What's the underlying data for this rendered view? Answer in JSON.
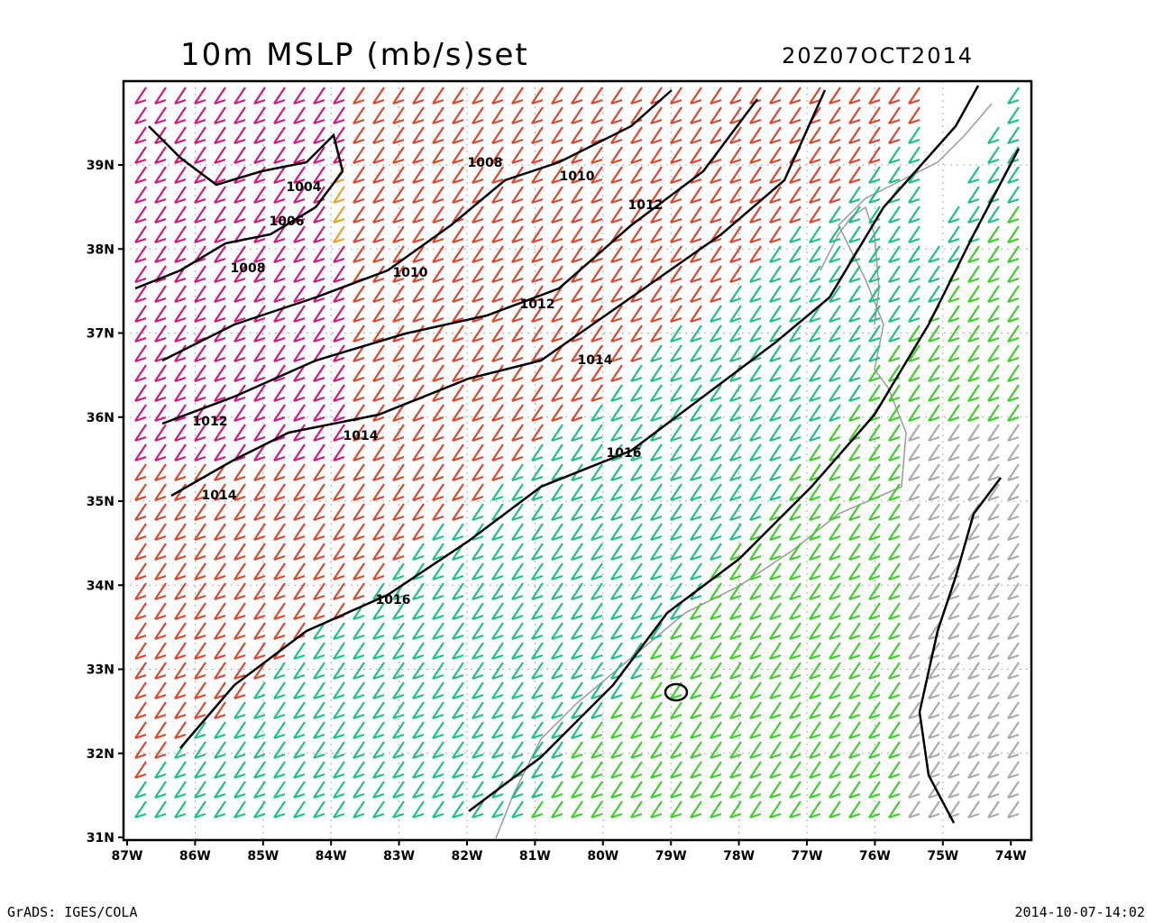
{
  "header": {
    "title": "10m MSLP (mb/s)set",
    "valid_time": "20Z07OCT2014"
  },
  "axes": {
    "lon_labels": [
      "87W",
      "86W",
      "85W",
      "84W",
      "83W",
      "82W",
      "81W",
      "80W",
      "79W",
      "78W",
      "77W",
      "76W",
      "75W",
      "74W"
    ],
    "lat_labels": [
      "39N",
      "38N",
      "37N",
      "36N",
      "35N",
      "34N",
      "33N",
      "32N",
      "31N"
    ]
  },
  "contours": {
    "labels": [
      "1004",
      "1008",
      "1010",
      "1012",
      "1006",
      "1008",
      "1010",
      "1012",
      "1014",
      "1012",
      "1014",
      "1016",
      "1014",
      "1016"
    ]
  },
  "footer": {
    "left": "GrADS: IGES/COLA",
    "right": "2014-10-07-14:02"
  }
}
